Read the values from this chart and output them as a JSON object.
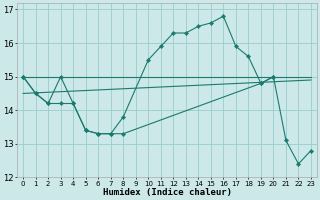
{
  "xlabel": "Humidex (Indice chaleur)",
  "background_color": "#cce8e8",
  "grid_color": "#99cccc",
  "line_color": "#1a7a6e",
  "xlim": [
    -0.5,
    23.5
  ],
  "ylim": [
    12,
    17.2
  ],
  "yticks": [
    12,
    13,
    14,
    15,
    16,
    17
  ],
  "xticks": [
    0,
    1,
    2,
    3,
    4,
    5,
    6,
    7,
    8,
    9,
    10,
    11,
    12,
    13,
    14,
    15,
    16,
    17,
    18,
    19,
    20,
    21,
    22,
    23
  ],
  "series": [
    {
      "x": [
        0,
        1,
        2,
        3,
        4,
        5,
        6,
        7,
        8,
        10,
        11,
        12,
        13,
        14,
        15,
        16,
        17,
        18,
        19,
        20,
        21,
        22,
        23
      ],
      "y": [
        15.0,
        14.5,
        14.2,
        15.0,
        14.2,
        13.4,
        13.3,
        13.3,
        13.8,
        15.5,
        15.9,
        16.3,
        16.3,
        16.5,
        16.6,
        16.8,
        15.9,
        15.6,
        14.8,
        15.0,
        13.1,
        12.4,
        12.8
      ]
    },
    {
      "x": [
        0,
        1,
        2,
        3,
        4,
        5,
        6,
        7,
        8,
        19,
        20
      ],
      "y": [
        15.0,
        14.5,
        14.2,
        14.2,
        14.2,
        13.4,
        13.3,
        13.3,
        13.3,
        14.8,
        15.0
      ]
    },
    {
      "x": [
        0,
        23
      ],
      "y": [
        15.0,
        15.0
      ]
    },
    {
      "x": [
        0,
        23
      ],
      "y": [
        14.5,
        14.9
      ]
    }
  ]
}
